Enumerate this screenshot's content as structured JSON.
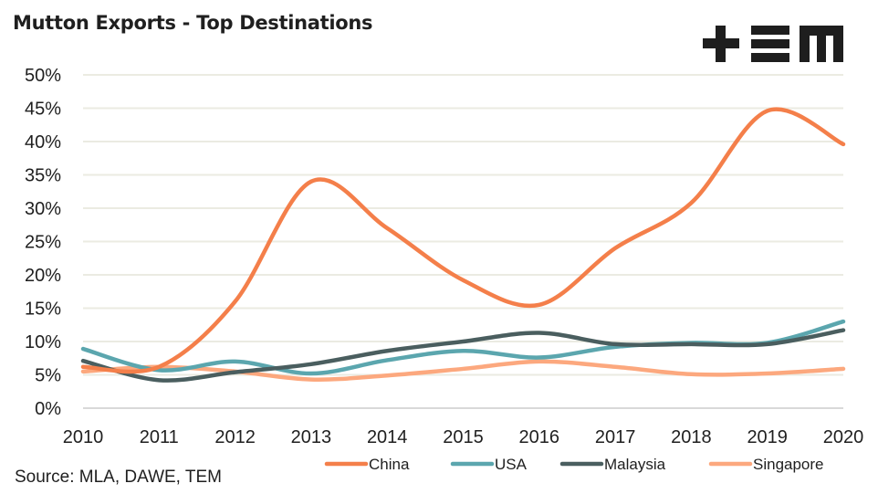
{
  "header": {
    "title": "Mutton Exports - Top Destinations",
    "logo": "tem-logo"
  },
  "footer": {
    "source": "Source: MLA, DAWE, TEM"
  },
  "chart_data": {
    "type": "line",
    "title": "Mutton Exports - Top Destinations",
    "xlabel": "",
    "ylabel": "",
    "x": [
      "2010",
      "2011",
      "2012",
      "2013",
      "2014",
      "2015",
      "2016",
      "2017",
      "2018",
      "2019",
      "2020"
    ],
    "ylim": [
      0,
      50
    ],
    "yticks": [
      "0%",
      "5%",
      "10%",
      "15%",
      "20%",
      "25%",
      "30%",
      "35%",
      "40%",
      "45%",
      "50%"
    ],
    "ytick_values": [
      0,
      5,
      10,
      15,
      20,
      25,
      30,
      35,
      40,
      45,
      50
    ],
    "grid": true,
    "smooth": true,
    "legend_position": "bottom",
    "series": [
      {
        "name": "China",
        "color": "#f47f4a",
        "values": [
          6.2,
          6.2,
          16.0,
          34.0,
          27.0,
          19.2,
          15.5,
          24.0,
          30.8,
          44.6,
          39.6
        ]
      },
      {
        "name": "USA",
        "color": "#5ba6ae",
        "values": [
          8.9,
          5.7,
          7.0,
          5.2,
          7.2,
          8.6,
          7.6,
          9.2,
          9.8,
          9.8,
          13.0
        ]
      },
      {
        "name": "Malaysia",
        "color": "#4a5e5f",
        "values": [
          7.1,
          4.2,
          5.4,
          6.6,
          8.6,
          10.0,
          11.3,
          9.6,
          9.6,
          9.6,
          11.7
        ]
      },
      {
        "name": "Singapore",
        "color": "#fca87e",
        "values": [
          5.5,
          6.2,
          5.5,
          4.3,
          4.9,
          5.9,
          7.0,
          6.2,
          5.1,
          5.2,
          5.9
        ]
      }
    ]
  }
}
